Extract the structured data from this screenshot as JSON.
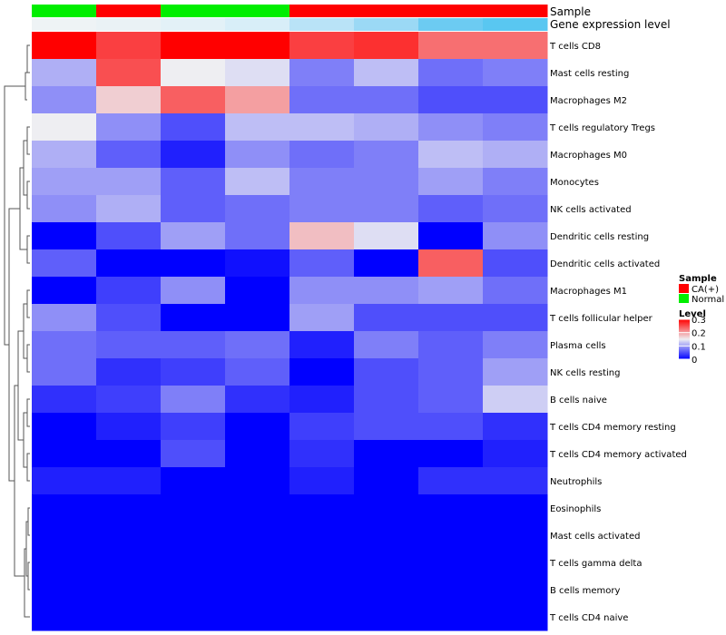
{
  "chart_data": {
    "type": "heatmap",
    "title": "",
    "annotations": [
      {
        "name": "Sample",
        "values": [
          "Normal",
          "CA(+)",
          "Normal",
          "Normal",
          "CA(+)",
          "CA(+)",
          "CA(+)",
          "CA(+)"
        ],
        "colors": {
          "CA(+)": "#ff0000",
          "Normal": "#00ee00"
        }
      },
      {
        "name": "Gene expression level",
        "values": [
          "low",
          "low",
          "low",
          "low",
          "high",
          "high",
          "high",
          "high"
        ],
        "colors": {
          "low": "#e6f3fa",
          "high": "#5ec9f2"
        },
        "shades": [
          "#eef3f5",
          "#eaf2f5",
          "#e3f1f7",
          "#d8eef8",
          "#b9e3f7",
          "#9bd9f5",
          "#6ccbf2",
          "#59c7f1"
        ]
      }
    ],
    "rows": [
      "T cells CD8",
      "Mast cells resting",
      "Macrophages M2",
      "T cells regulatory  Tregs",
      "Macrophages M0",
      "Monocytes",
      "NK cells activated",
      "Dendritic cells resting",
      "Dendritic cells activated",
      "Macrophages M1",
      "T cells follicular helper",
      "Plasma cells",
      "NK cells resting",
      "B cells naive",
      "T cells CD4 memory resting",
      "T cells CD4 memory activated",
      "Neutrophils",
      "Eosinophils",
      "Mast cells activated",
      "T cells gamma delta",
      "B cells memory",
      "T cells CD4 naive"
    ],
    "columns": 8,
    "values": [
      [
        0.3,
        0.26,
        0.3,
        0.3,
        0.26,
        0.27,
        0.23,
        0.23
      ],
      [
        0.11,
        0.25,
        0.15,
        0.14,
        0.08,
        0.12,
        0.07,
        0.08
      ],
      [
        0.09,
        0.17,
        0.24,
        0.2,
        0.07,
        0.07,
        0.05,
        0.05
      ],
      [
        0.15,
        0.09,
        0.05,
        0.12,
        0.12,
        0.11,
        0.09,
        0.08
      ],
      [
        0.11,
        0.06,
        0.02,
        0.09,
        0.07,
        0.08,
        0.12,
        0.11
      ],
      [
        0.1,
        0.1,
        0.06,
        0.12,
        0.08,
        0.08,
        0.1,
        0.08
      ],
      [
        0.09,
        0.11,
        0.06,
        0.07,
        0.08,
        0.08,
        0.06,
        0.07
      ],
      [
        0.0,
        0.05,
        0.1,
        0.07,
        0.18,
        0.14,
        0.0,
        0.09
      ],
      [
        0.06,
        0.0,
        0.0,
        0.01,
        0.06,
        0.0,
        0.24,
        0.05
      ],
      [
        0.0,
        0.04,
        0.09,
        0.0,
        0.09,
        0.09,
        0.1,
        0.07
      ],
      [
        0.09,
        0.05,
        0.0,
        0.0,
        0.1,
        0.05,
        0.05,
        0.05
      ],
      [
        0.07,
        0.06,
        0.06,
        0.07,
        0.02,
        0.08,
        0.06,
        0.08
      ],
      [
        0.07,
        0.03,
        0.04,
        0.06,
        0.0,
        0.05,
        0.06,
        0.1
      ],
      [
        0.03,
        0.04,
        0.08,
        0.03,
        0.02,
        0.05,
        0.06,
        0.13
      ],
      [
        0.0,
        0.02,
        0.04,
        0.0,
        0.04,
        0.05,
        0.05,
        0.03
      ],
      [
        0.0,
        0.0,
        0.05,
        0.0,
        0.03,
        0.0,
        0.0,
        0.02
      ],
      [
        0.02,
        0.02,
        0.0,
        0.0,
        0.02,
        0.0,
        0.03,
        0.03
      ],
      [
        0.0,
        0.0,
        0.0,
        0.0,
        0.0,
        0.0,
        0.0,
        0.0
      ],
      [
        0.0,
        0.0,
        0.0,
        0.0,
        0.0,
        0.0,
        0.0,
        0.0
      ],
      [
        0.0,
        0.0,
        0.0,
        0.0,
        0.0,
        0.0,
        0.0,
        0.0
      ],
      [
        0.0,
        0.0,
        0.0,
        0.0,
        0.0,
        0.0,
        0.0,
        0.0
      ],
      [
        0.0,
        0.0,
        0.0,
        0.0,
        0.0,
        0.0,
        0.0,
        0.0
      ]
    ],
    "color_scale": {
      "low": "#0000ff",
      "mid": "#eeeef2",
      "high": "#ff0000",
      "min": 0,
      "mid_value": 0.15,
      "max": 0.3
    },
    "legend": {
      "sample_title": "Sample",
      "sample_items": [
        {
          "label": "CA(+)",
          "color": "#ff0000"
        },
        {
          "label": "Normal",
          "color": "#00ee00"
        }
      ],
      "level_title": "Level",
      "level_ticks": [
        "0.3",
        "0.2",
        "0.1",
        "0"
      ],
      "level_tick_values": [
        0.3,
        0.2,
        0.1,
        0
      ],
      "placement": "right"
    },
    "dendrogram": "rows",
    "grid": false
  }
}
